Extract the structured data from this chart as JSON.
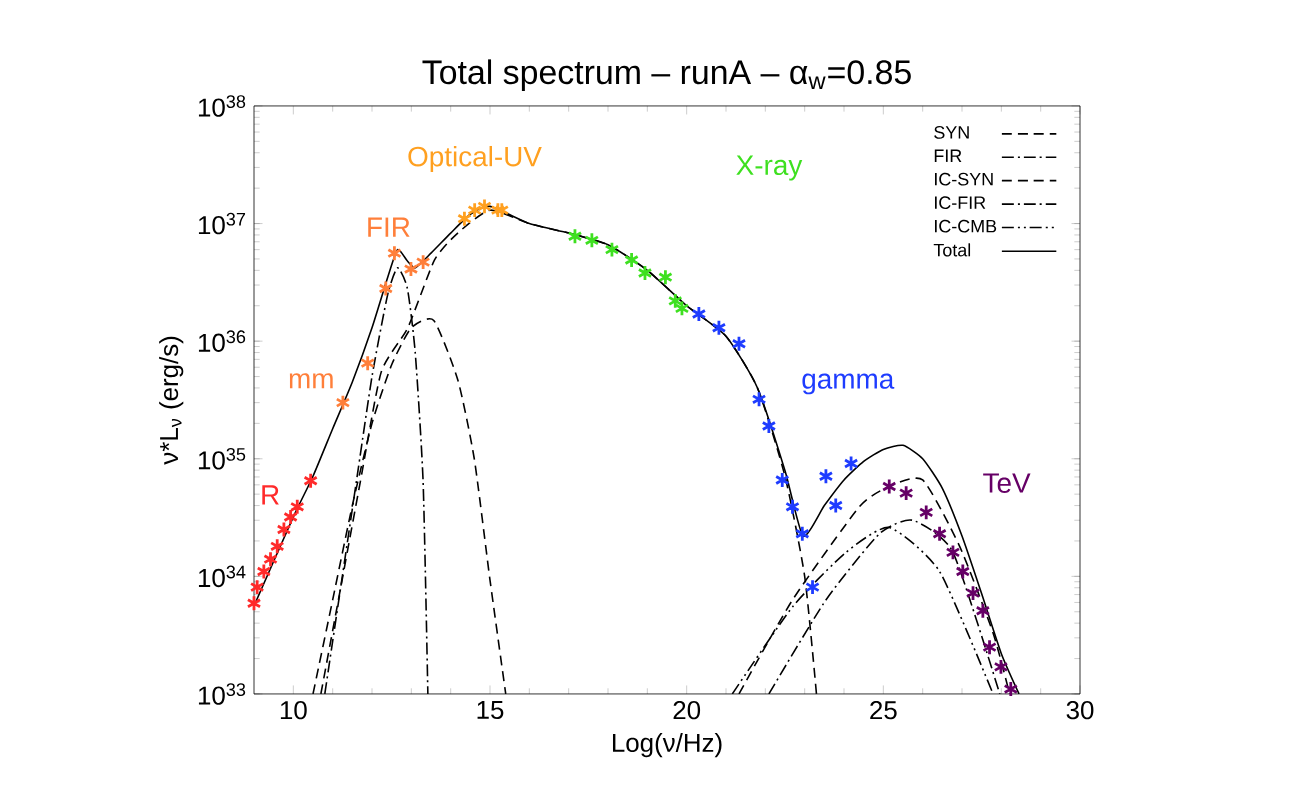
{
  "chart_data": {
    "type": "line",
    "title": "Total spectrum – runA – α$_{w}$=0.85",
    "xlabel": "Log(ν/Hz)",
    "ylabel": "ν*L$_{ν}$ (erg/s)",
    "xlim": [
      9,
      30
    ],
    "xticks": [
      10,
      15,
      20,
      25,
      30
    ],
    "ylim": [
      1e+33,
      1e+38
    ],
    "yticks": [
      {
        "value": 1e+33,
        "label": "10$^{33}$"
      },
      {
        "value": 1e+34,
        "label": "10$^{34}$"
      },
      {
        "value": 1e+35,
        "label": "10$^{35}$"
      },
      {
        "value": 1e+36,
        "label": "10$^{36}$"
      },
      {
        "value": 1e+37,
        "label": "10$^{37}$"
      },
      {
        "value": 1e+38,
        "label": "10$^{38}$"
      }
    ],
    "log": "y",
    "legend": "top right",
    "series": [
      {
        "name": "SYN",
        "color": "#000000",
        "line_style": "dashed",
        "marker": "none",
        "x": [
          10.7,
          11.2,
          11.7,
          12.23,
          12.91,
          13.59,
          14.18,
          15,
          16,
          17,
          18,
          19,
          20,
          21,
          21.8,
          22.5,
          23,
          23.3
        ],
        "values": [
          1e+33,
          7.9e+33,
          6.3e+34,
          5.4e+35,
          1.3e+36,
          4.9e+36,
          8.3e+36,
          1.3e+37,
          1e+37,
          8.3e+36,
          6.6e+36,
          4e+36,
          2e+36,
          1.1e+36,
          4e+35,
          7.1e+34,
          1e+34,
          1e+33
        ]
      },
      {
        "name": "FIR",
        "color": "#000000",
        "line_style": "dashdot",
        "marker": "none",
        "x": [
          10.8,
          11.2,
          11.6,
          12.0,
          12.4,
          12.65,
          12.9,
          13.1,
          13.3,
          13.42
        ],
        "values": [
          1e+33,
          7.9e+33,
          6.3e+34,
          5e+35,
          2.5e+36,
          4.2e+36,
          2.8e+36,
          7.9e+35,
          6.3e+34,
          1e+33
        ]
      },
      {
        "name": "IC-SYN",
        "color": "#000000",
        "line_style": "dashed",
        "marker": "none",
        "x": [
          21.33,
          22.69,
          24.39,
          25.15,
          26.0,
          26.94,
          27.79,
          28.21
        ],
        "values": [
          1e+33,
          6.3e+33,
          3.9e+34,
          5.8e+34,
          6.6e+34,
          1.8e+34,
          3.3e+33,
          1e+33
        ]
      },
      {
        "name": "IC-FIR",
        "color": "#000000",
        "line_style": "dashdot",
        "marker": "none",
        "x": [
          22.09,
          23.54,
          24.9,
          25.74,
          26.77,
          27.96
        ],
        "values": [
          1e+33,
          6.3e+33,
          2.3e+34,
          3e+34,
          1.6e+34,
          1e+33
        ]
      },
      {
        "name": "IC-CMB",
        "color": "#000000",
        "line_style": "dashdotdot",
        "marker": "none",
        "x": [
          21.16,
          22.69,
          24.05,
          25.15,
          26.43,
          27.79
        ],
        "values": [
          1e+33,
          5.5e+33,
          1.6e+34,
          2.6e+34,
          1.1e+34,
          1e+33
        ]
      },
      {
        "name": "Total",
        "color": "#000000",
        "line_style": "solid",
        "marker": "none",
        "x": [
          9.0,
          10,
          10.5,
          11,
          11.5,
          12,
          12.4,
          12.65,
          12.9,
          13.1,
          13.5,
          14,
          14.5,
          15,
          16,
          17,
          18,
          19,
          20,
          21,
          21.8,
          22.5,
          22.96,
          23.5,
          24,
          24.5,
          25,
          25.5,
          26,
          26.5,
          27,
          27.5,
          28,
          28.45
        ],
        "values": [
          5.6e+33,
          3.2e+34,
          7.1e+34,
          1.8e+35,
          4.5e+35,
          1.3e+36,
          3.5e+36,
          6e+36,
          4.8e+36,
          4.2e+36,
          5.6e+36,
          8.3e+36,
          1.2e+37,
          1.4e+37,
          1e+37,
          8.3e+36,
          6.6e+36,
          4e+36,
          2e+36,
          1.1e+36,
          4e+35,
          7.9e+34,
          2.2e+34,
          4e+34,
          6.6e+34,
          9.5e+34,
          1.2e+35,
          1.3e+35,
          1e+35,
          5.6e+34,
          2.2e+34,
          7.1e+33,
          2.2e+33,
          1e+33
        ]
      },
      {
        "color": "#000000",
        "line_style": "dashed",
        "marker": "none",
        "x": [
          10.5,
          11.0,
          11.5,
          12.0,
          12.5,
          13.0,
          13.57,
          14.18,
          14.6,
          15.0,
          15.4
        ],
        "values": [
          1e+33,
          6.3e+33,
          4e+34,
          2e+35,
          6.3e+35,
          1.3e+36,
          1.5e+36,
          4.7e+35,
          1e+35,
          9.3e+33,
          1e+33
        ]
      },
      {
        "type": "scatter",
        "name": "R",
        "color": "#ff2a2a",
        "marker": "cross",
        "x": [
          9.0,
          9.08,
          9.25,
          9.42,
          9.59,
          9.76,
          9.93,
          10.1,
          10.44
        ],
        "values": [
          5.9e+33,
          8.1e+33,
          1.1e+34,
          1.4e+34,
          1.8e+34,
          2.5e+34,
          3.2e+34,
          3.9e+34,
          6.5e+34
        ]
      },
      {
        "type": "scatter",
        "name": "mm",
        "color": "#ff7f3a",
        "marker": "cross",
        "x": [
          11.26,
          11.89
        ],
        "values": [
          3e+35,
          6.5e+35
        ]
      },
      {
        "type": "scatter",
        "name": "FIR",
        "color": "#ff7f3a",
        "marker": "cross",
        "x": [
          12.35,
          12.57,
          12.99,
          13.3
        ],
        "values": [
          2.8e+36,
          5.6e+36,
          4.1e+36,
          4.7e+36
        ]
      },
      {
        "type": "scatter",
        "name": "Optical-UV",
        "color": "#ffa020",
        "marker": "cross",
        "x": [
          14.35,
          14.61,
          14.86,
          15.2,
          15.3
        ],
        "values": [
          1.1e+37,
          1.3e+37,
          1.4e+37,
          1.3e+37,
          1.3e+37
        ]
      },
      {
        "type": "scatter",
        "name": "X-ray",
        "color": "#3ee020",
        "marker": "cross",
        "x": [
          17.16,
          17.59,
          18.1,
          18.6,
          18.94,
          19.46,
          19.71,
          19.88
        ],
        "values": [
          7.8e+36,
          7.2e+36,
          6e+36,
          4.9e+36,
          3.8e+36,
          3.5e+36,
          2.2e+36,
          1.9e+36
        ]
      },
      {
        "type": "scatter",
        "name": "gamma",
        "color": "#1e3cff",
        "marker": "cross",
        "x": [
          20.31,
          20.82,
          21.33,
          21.84,
          22.09,
          22.43,
          22.69,
          22.94,
          23.2,
          23.54,
          23.79,
          24.18
        ],
        "values": [
          1.7e+36,
          1.3e+36,
          9.5e+35,
          3.2e+35,
          1.9e+35,
          6.6e+34,
          3.9e+34,
          2.3e+34,
          8.1e+33,
          7.1e+34,
          4e+34,
          9.1e+34
        ]
      },
      {
        "type": "scatter",
        "name": "TeV",
        "color": "#660066",
        "marker": "cross",
        "x": [
          25.15,
          25.58,
          26.09,
          26.43,
          26.77,
          27.02,
          27.28,
          27.53,
          27.7,
          27.99,
          28.24
        ],
        "values": [
          5.8e+34,
          5.1e+34,
          3.5e+34,
          2.3e+34,
          1.6e+34,
          1.1e+34,
          7.2e+33,
          5.1e+33,
          2.5e+33,
          1.7e+33,
          1.1e+33
        ]
      }
    ]
  }
}
